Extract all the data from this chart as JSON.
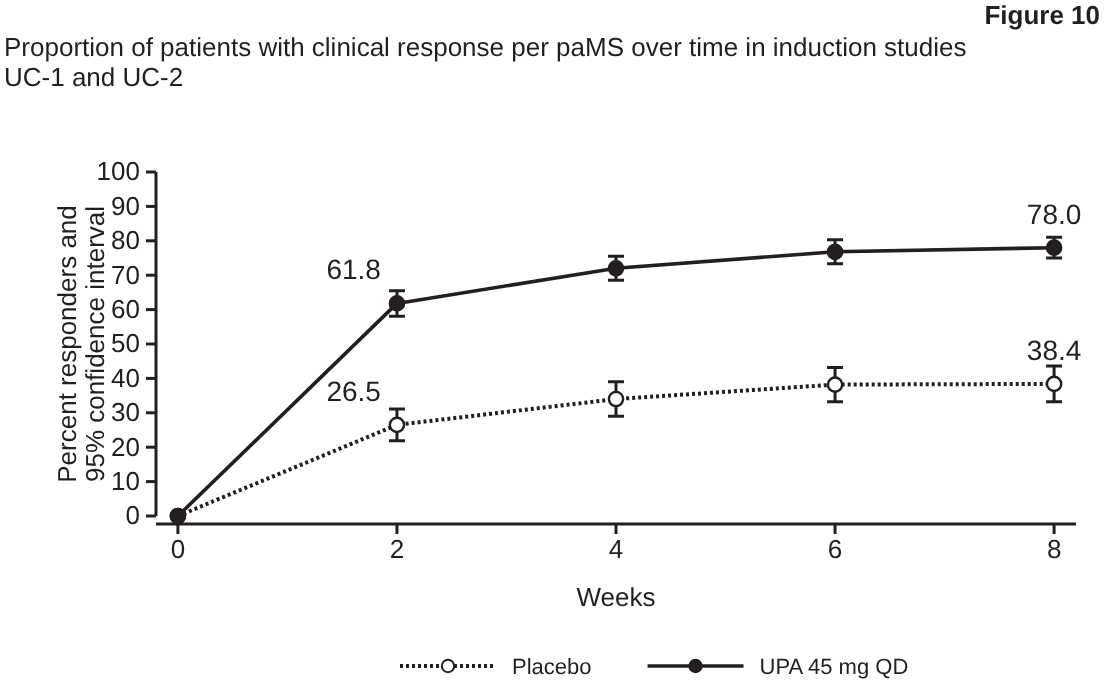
{
  "chart_data": {
    "type": "line",
    "title": "Proportion of patients with clinical response per paMS over time in induction studies\nUC-1 and UC-2",
    "annotations": [
      "Figure 10"
    ],
    "xlabel": "Weeks",
    "ylabel": "Percent responders and\n95% confidence interval",
    "x": [
      0,
      2,
      4,
      6,
      8
    ],
    "xlim": [
      -0.2,
      8.2
    ],
    "xticks": [
      0,
      2,
      4,
      6,
      8
    ],
    "ylim": [
      0,
      100
    ],
    "yticks": [
      0,
      10,
      20,
      30,
      40,
      50,
      60,
      70,
      80,
      90,
      100
    ],
    "legend": "bottom",
    "marker": "circle",
    "series": [
      {
        "name": "Placebo",
        "color": "#231f20",
        "line_style": "dotted",
        "values": [
          0,
          26.5,
          34.0,
          38.2,
          38.4
        ],
        "errors": [
          null,
          4.6,
          5,
          5,
          5.2
        ],
        "value_labels": [
          null,
          "26.5",
          null,
          null,
          "38.4"
        ]
      },
      {
        "name": "UPA 45 mg QD",
        "color": "#231f20",
        "line_style": "solid",
        "values": [
          0,
          61.8,
          72.0,
          76.8,
          78.0
        ],
        "errors": [
          null,
          3.7,
          3.5,
          3.5,
          3
        ],
        "value_labels": [
          null,
          "61.8",
          null,
          null,
          "78.0"
        ]
      }
    ]
  }
}
